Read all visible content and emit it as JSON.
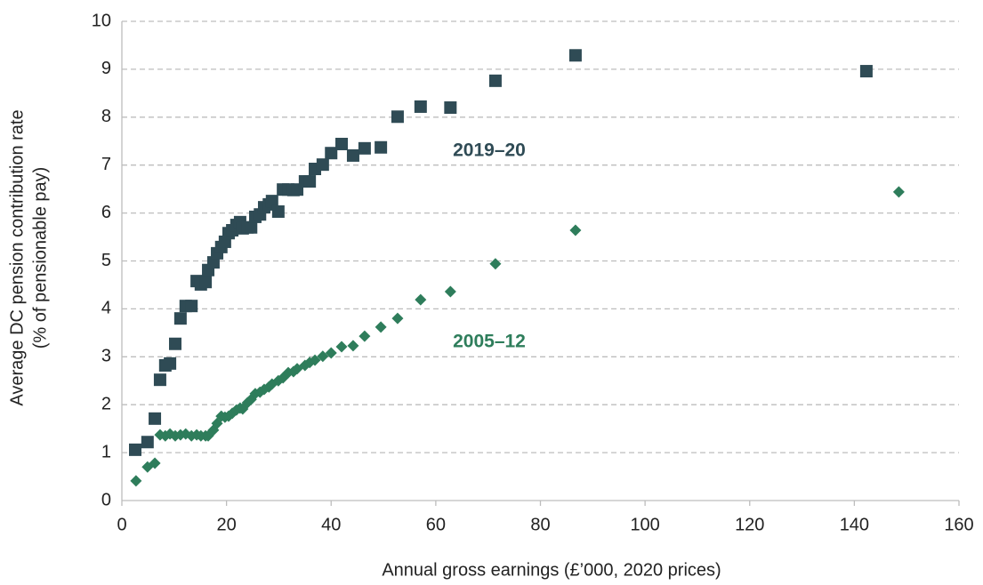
{
  "chart_data": {
    "type": "scatter",
    "x_label": "Annual gross earnings (£’000, 2020 prices)",
    "y_label": [
      "Average DC pension contribution rate",
      "(% of pensionable pay)"
    ],
    "annotations": [
      "2019–20",
      "2005–12"
    ],
    "xlim": [
      0,
      160
    ],
    "xticks": [
      0,
      20,
      40,
      60,
      80,
      100,
      120,
      140,
      160
    ],
    "ylim": [
      0,
      10
    ],
    "yticks": [
      0,
      1,
      2,
      3,
      4,
      5,
      6,
      7,
      8,
      9,
      10
    ],
    "grid": true,
    "series": [
      {
        "name": "2019–20",
        "color": "#2f4b55",
        "marker": "square",
        "x": [
          2.55,
          4.9,
          6.3,
          7.3,
          8.3,
          9.2,
          10.2,
          11.2,
          12.2,
          13.3,
          14.3,
          15.1,
          16.0,
          16.5,
          17.5,
          18.2,
          19.0,
          19.7,
          20.4,
          21.1,
          21.9,
          22.6,
          23.1,
          24.0,
          24.7,
          25.5,
          26.4,
          27.2,
          28.1,
          28.7,
          29.9,
          30.8,
          31.8,
          32.8,
          33.5,
          35.0,
          35.9,
          36.9,
          38.4,
          40.0,
          42.0,
          44.2,
          46.4,
          49.5,
          52.7,
          57.1,
          62.8,
          71.4,
          86.7,
          142.3
        ],
        "values": [
          1.06,
          1.22,
          1.71,
          2.52,
          2.82,
          2.86,
          3.27,
          3.8,
          4.06,
          4.06,
          4.58,
          4.51,
          4.56,
          4.81,
          4.97,
          5.16,
          5.29,
          5.4,
          5.58,
          5.64,
          5.75,
          5.81,
          5.68,
          5.7,
          5.7,
          5.92,
          5.97,
          6.12,
          6.18,
          6.25,
          6.03,
          6.49,
          6.49,
          6.48,
          6.49,
          6.66,
          6.66,
          6.92,
          7.01,
          7.25,
          7.44,
          7.2,
          7.35,
          7.37,
          8.01,
          8.22,
          8.2,
          8.76,
          9.29,
          8.96
        ]
      },
      {
        "name": "2005–12",
        "color": "#2e7d5b",
        "marker": "diamond",
        "x": [
          2.7,
          4.9,
          6.3,
          7.3,
          8.3,
          9.2,
          10.2,
          11.2,
          12.2,
          13.3,
          14.3,
          15.1,
          16.0,
          16.5,
          17.5,
          18.2,
          19.0,
          19.7,
          20.4,
          21.1,
          21.9,
          22.6,
          23.1,
          24.0,
          24.7,
          25.5,
          26.4,
          27.2,
          28.1,
          28.7,
          29.9,
          30.8,
          31.8,
          32.8,
          33.5,
          35.0,
          35.9,
          36.9,
          38.4,
          40.0,
          42.0,
          44.2,
          46.4,
          49.5,
          52.7,
          57.1,
          62.8,
          71.4,
          86.7,
          148.5
        ],
        "values": [
          0.41,
          0.7,
          0.78,
          1.37,
          1.35,
          1.39,
          1.35,
          1.37,
          1.39,
          1.35,
          1.37,
          1.35,
          1.35,
          1.35,
          1.47,
          1.61,
          1.76,
          1.74,
          1.76,
          1.82,
          1.89,
          1.93,
          1.91,
          2.04,
          2.11,
          2.23,
          2.26,
          2.32,
          2.37,
          2.43,
          2.5,
          2.56,
          2.67,
          2.69,
          2.75,
          2.82,
          2.88,
          2.93,
          3.01,
          3.08,
          3.21,
          3.23,
          3.43,
          3.62,
          3.8,
          4.19,
          4.36,
          4.94,
          5.64,
          6.44
        ]
      }
    ]
  }
}
